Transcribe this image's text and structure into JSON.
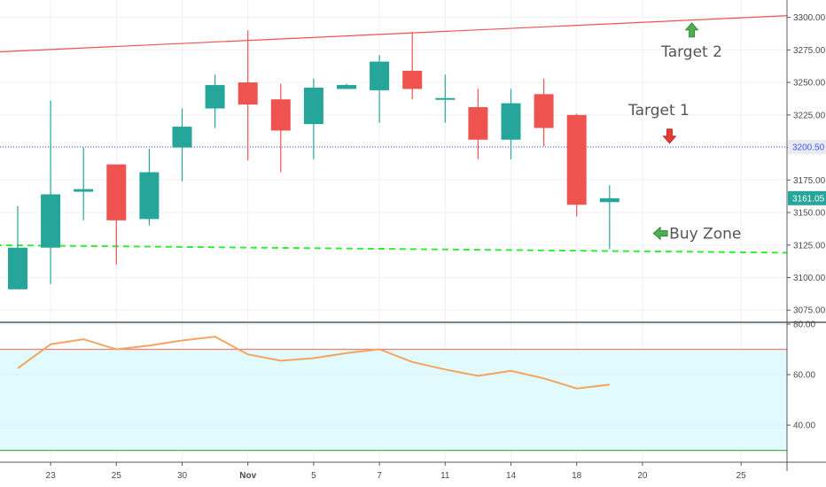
{
  "chart_data": [
    {
      "type": "candlestick",
      "y_ticks": [
        3075,
        3100,
        3125,
        3150,
        3175,
        3200,
        3225,
        3250,
        3275,
        3300
      ],
      "y_tick_labels": [
        "3075.00",
        "3100.00",
        "3125.00",
        "3150.00",
        "3175.00",
        "3200.00",
        "3225.00",
        "3250.00",
        "3275.00",
        "3300.00"
      ],
      "ylim": [
        3067,
        3312
      ],
      "x_tick_labels": [
        "23",
        "25",
        "30",
        "Nov",
        "5",
        "7",
        "11",
        "14",
        "18",
        "20",
        "25"
      ],
      "x_tick_index": [
        1,
        3,
        5,
        7,
        9,
        11,
        13,
        15,
        17,
        19,
        22
      ],
      "candles": [
        {
          "open": 3091,
          "high": 3155,
          "low": 3091,
          "close": 3123
        },
        {
          "open": 3123,
          "high": 3236,
          "low": 3095,
          "close": 3164
        },
        {
          "open": 3166,
          "high": 3200,
          "low": 3144,
          "close": 3168
        },
        {
          "open": 3187,
          "high": 3187,
          "low": 3110,
          "close": 3144
        },
        {
          "open": 3145,
          "high": 3199,
          "low": 3140,
          "close": 3181
        },
        {
          "open": 3200,
          "high": 3230,
          "low": 3174,
          "close": 3216
        },
        {
          "open": 3230,
          "high": 3256,
          "low": 3215,
          "close": 3248
        },
        {
          "open": 3250,
          "high": 3290,
          "low": 3190,
          "close": 3233
        },
        {
          "open": 3237,
          "high": 3249,
          "low": 3181,
          "close": 3213
        },
        {
          "open": 3218,
          "high": 3253,
          "low": 3191,
          "close": 3246
        },
        {
          "open": 3245,
          "high": 3249,
          "low": 3245,
          "close": 3248
        },
        {
          "open": 3244,
          "high": 3271,
          "low": 3219,
          "close": 3266
        },
        {
          "open": 3259,
          "high": 3289,
          "low": 3237,
          "close": 3245
        },
        {
          "open": 3238,
          "high": 3256,
          "low": 3219,
          "close": 3238
        },
        {
          "open": 3231,
          "high": 3245,
          "low": 3191,
          "close": 3206
        },
        {
          "open": 3206,
          "high": 3245,
          "low": 3191,
          "close": 3234
        },
        {
          "open": 3241,
          "high": 3253,
          "low": 3201,
          "close": 3215
        },
        {
          "open": 3225,
          "high": 3226,
          "low": 3147,
          "close": 3156
        },
        {
          "open": 3158,
          "high": 3171,
          "low": 3122,
          "close": 3161
        }
      ],
      "current_price": {
        "label": "3161.05",
        "value": 3161.05
      },
      "marked_level": {
        "label": "3200.50",
        "value": 3200.5
      },
      "resistance_line": {
        "start_index": -1,
        "start_value": 3273,
        "end_index": 24,
        "end_value": 3302
      },
      "support_line": {
        "start_index": -1,
        "start_value": 3125,
        "end_index": 24,
        "end_value": 3119
      },
      "annotations": [
        {
          "text": "Target 2",
          "arrow": "up",
          "index": 20.5,
          "value": 3289
        },
        {
          "text": "Target 1",
          "arrow": "down",
          "index": 19.5,
          "value": 3225
        },
        {
          "text": "Buy Zone",
          "arrow": "left",
          "index": 19.6,
          "value": 3134
        }
      ],
      "colors": {
        "up": "#26a69a",
        "down": "#ef5350",
        "resistance": "#ef5350",
        "support": "#33ee33",
        "marked_level": "#3d5afe",
        "arrow_up": "#4caf50",
        "arrow_down": "#e53935",
        "axis_text": "#4a4a4a"
      }
    },
    {
      "type": "line",
      "y_ticks": [
        40,
        60,
        80
      ],
      "y_tick_labels": [
        "40.00",
        "60.00",
        "80.00"
      ],
      "ylim": [
        26,
        80
      ],
      "upper_band": 70,
      "lower_band": 30,
      "values": [
        62.5,
        72,
        74,
        70,
        71.5,
        73.5,
        75,
        68,
        65.5,
        66.5,
        68.5,
        70,
        65,
        62,
        59.5,
        61.5,
        58.5,
        54.5,
        56
      ],
      "colors": {
        "line": "#f4a460",
        "band_fill": "#e0fafd",
        "band_line": "#ef7f6f",
        "lower_line": "#4caf50"
      }
    }
  ]
}
